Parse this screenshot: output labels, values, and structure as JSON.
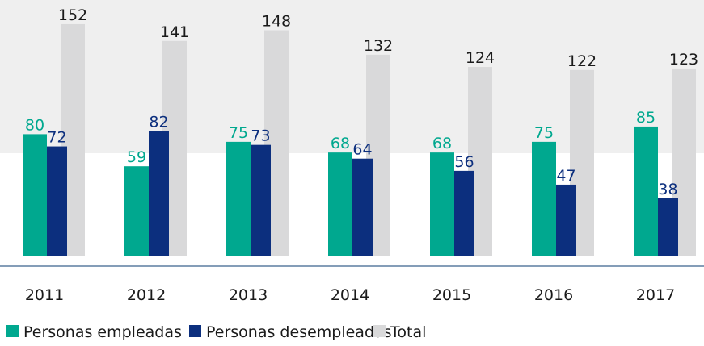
{
  "chart_data": {
    "type": "bar",
    "categories": [
      "2011",
      "2012",
      "2013",
      "2014",
      "2015",
      "2016",
      "2017"
    ],
    "series": [
      {
        "name": "Personas empleadas",
        "color": "#00a88f",
        "values": [
          80,
          59,
          75,
          68,
          68,
          75,
          85
        ]
      },
      {
        "name": "Personas desempleadas",
        "color": "#0c2f7e",
        "values": [
          72,
          82,
          73,
          64,
          56,
          47,
          38
        ]
      },
      {
        "name": "Total",
        "color": "#d9d9da",
        "values": [
          152,
          141,
          148,
          132,
          124,
          122,
          123
        ]
      }
    ],
    "legend": "bottom-left"
  }
}
